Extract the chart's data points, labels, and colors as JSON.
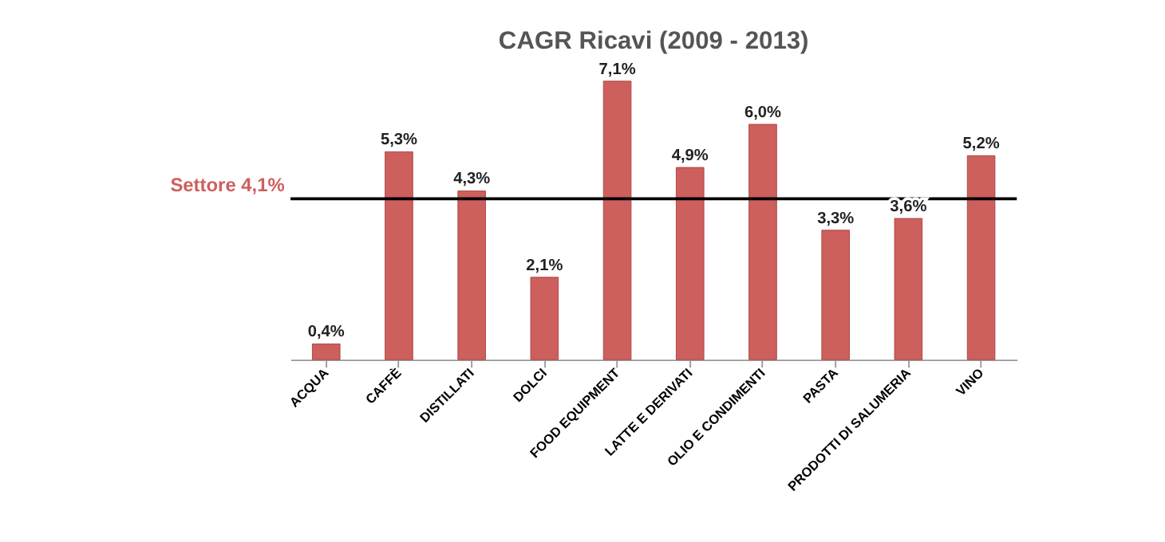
{
  "chart_data": {
    "type": "bar",
    "title": "CAGR Ricavi  (2009 - 2013)",
    "categories": [
      "ACQUA",
      "CAFFÈ",
      "DISTILLATI",
      "DOLCI",
      "FOOD EQUIPMENT",
      "LATTE E DERIVATI",
      "OLIO E CONDIMENTI",
      "PASTA",
      "PRODOTTI DI SALUMERIA",
      "VINO"
    ],
    "values": [
      0.4,
      5.3,
      4.3,
      2.1,
      7.1,
      4.9,
      6.0,
      3.3,
      3.6,
      5.2
    ],
    "value_labels": [
      "0,4%",
      "5,3%",
      "4,3%",
      "2,1%",
      "7,1%",
      "4,9%",
      "6,0%",
      "3,3%",
      "3,6%",
      "5,2%"
    ],
    "color": "#cd5f5c",
    "ref_lines": [
      {
        "axis": "y",
        "value": 4.1,
        "label": "Settore 4,1%",
        "color": "#000000"
      }
    ],
    "grid": false
  }
}
